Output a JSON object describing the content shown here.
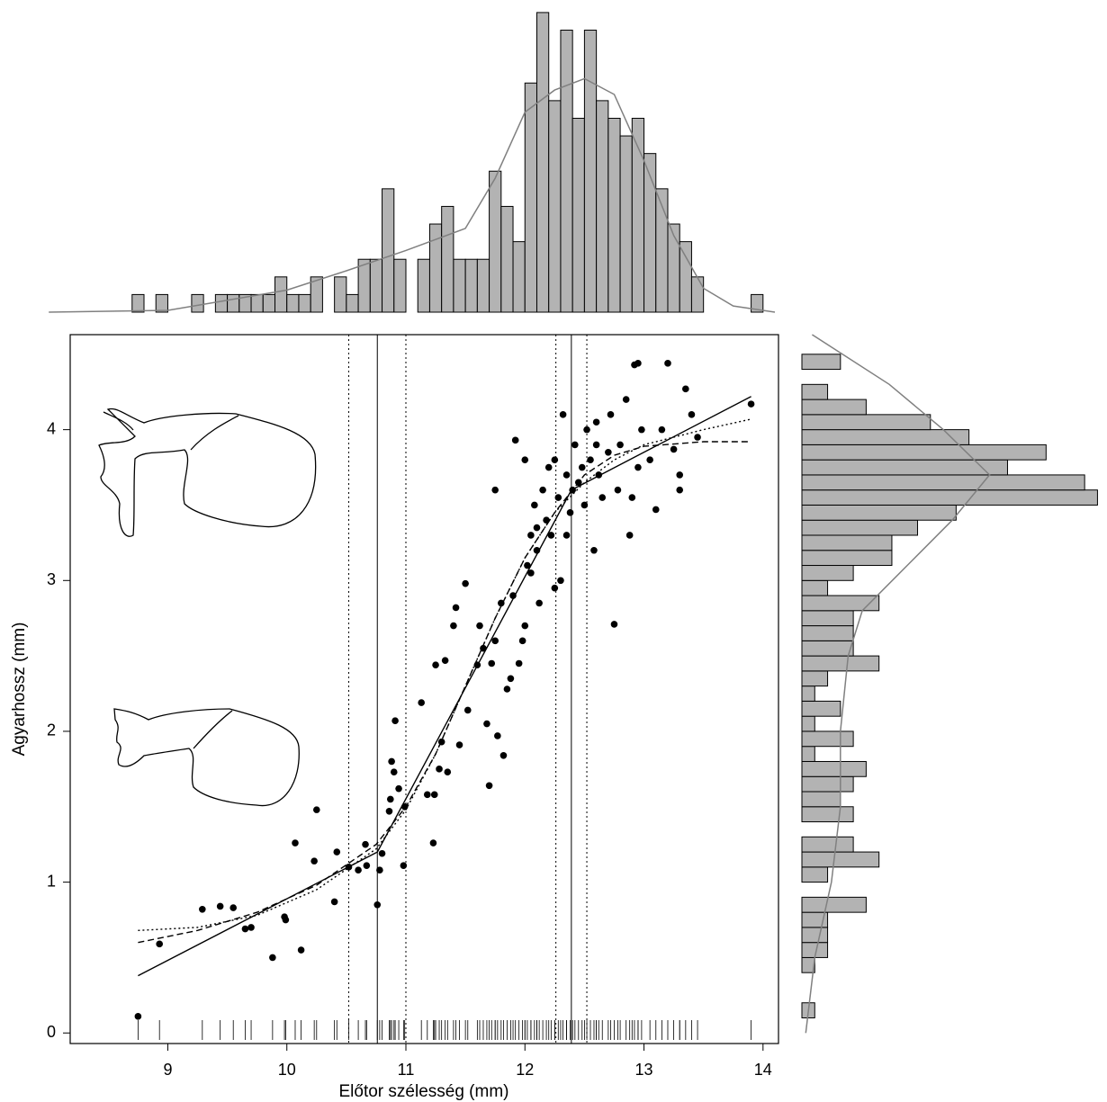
{
  "chart_data": [
    {
      "type": "histogram",
      "orientation": "vertical",
      "color": "#b3b3b3",
      "bins": [
        8.7,
        8.8,
        8.9,
        9.0,
        9.1,
        9.2,
        9.3,
        9.4,
        9.5,
        9.6,
        9.7,
        9.8,
        9.9,
        10.0,
        10.1,
        10.2,
        10.3,
        10.4,
        10.5,
        10.6,
        10.7,
        10.8,
        10.9,
        11.0,
        11.1,
        11.2,
        11.3,
        11.4,
        11.5,
        11.6,
        11.7,
        11.8,
        11.9,
        12.0,
        12.1,
        12.2,
        12.3,
        12.4,
        12.5,
        12.6,
        12.7,
        12.8,
        12.9,
        13.0,
        13.1,
        13.2,
        13.3,
        13.4,
        13.5,
        13.6,
        13.7,
        13.8,
        13.9,
        14.0
      ],
      "counts": [
        1,
        0,
        1,
        0,
        0,
        1,
        0,
        1,
        1,
        1,
        1,
        1,
        2,
        1,
        1,
        2,
        0,
        2,
        1,
        3,
        3,
        7,
        3,
        0,
        3,
        5,
        6,
        3,
        3,
        3,
        8,
        6,
        4,
        13,
        17,
        12,
        16,
        11,
        16,
        12,
        11,
        10,
        11,
        9,
        7,
        5,
        4,
        2,
        0,
        0,
        0,
        0,
        1
      ],
      "density": {
        "color": "#808080",
        "x": [
          8.0,
          9.0,
          10.0,
          10.5,
          11.0,
          11.5,
          11.75,
          12.0,
          12.25,
          12.5,
          12.75,
          13.0,
          13.25,
          13.5,
          13.75,
          14.1
        ],
        "y": [
          0,
          0.1,
          1.25,
          2.35,
          3.5,
          4.75,
          7.6,
          11.35,
          12.6,
          13.25,
          12.35,
          8.6,
          4.35,
          1.35,
          0.35,
          0
        ]
      },
      "xlim": [
        8.18,
        14.13
      ],
      "ylim": [
        0,
        17.2
      ]
    },
    {
      "type": "scatter",
      "xlabel": "Előtor szélesség (mm)",
      "ylabel": "Agyarhossz (mm)",
      "color": "#000000",
      "x": [
        8.75,
        8.93,
        9.29,
        9.44,
        9.55,
        9.65,
        9.7,
        9.88,
        9.98,
        9.99,
        10.07,
        10.12,
        10.23,
        10.25,
        10.4,
        10.42,
        10.52,
        10.6,
        10.66,
        10.67,
        10.76,
        10.78,
        10.8,
        10.86,
        10.87,
        10.88,
        10.9,
        10.91,
        10.94,
        10.98,
        10.99,
        11.13,
        11.18,
        11.23,
        11.24,
        11.25,
        11.28,
        11.3,
        11.33,
        11.35,
        11.4,
        11.42,
        11.45,
        11.5,
        11.52,
        11.6,
        11.62,
        11.65,
        11.68,
        11.7,
        11.72,
        11.75,
        11.77,
        11.8,
        11.82,
        11.85,
        11.88,
        11.9,
        11.95,
        11.98,
        12.0,
        12.02,
        12.05,
        12.08,
        12.1,
        12.12,
        12.15,
        12.18,
        12.2,
        12.22,
        12.25,
        12.28,
        12.3,
        12.32,
        12.35,
        12.38,
        12.4,
        12.42,
        12.45,
        12.48,
        12.5,
        12.52,
        12.55,
        12.58,
        12.6,
        12.62,
        12.65,
        12.7,
        12.72,
        12.75,
        12.78,
        12.8,
        12.85,
        12.88,
        12.9,
        12.92,
        12.95,
        12.98,
        13.05,
        13.1,
        13.15,
        13.2,
        13.25,
        13.3,
        13.35,
        13.4,
        13.45,
        13.9,
        11.75,
        12.0,
        11.92,
        12.05,
        12.1,
        12.25,
        12.35,
        12.6,
        12.95,
        13.3
      ],
      "y": [
        0.11,
        0.59,
        0.82,
        0.84,
        0.83,
        0.69,
        0.7,
        0.5,
        0.77,
        0.75,
        1.26,
        0.55,
        1.14,
        1.48,
        0.87,
        1.2,
        1.1,
        1.08,
        1.25,
        1.11,
        0.85,
        1.08,
        1.19,
        1.47,
        1.55,
        1.8,
        1.73,
        2.07,
        1.62,
        1.11,
        1.5,
        2.19,
        1.58,
        1.26,
        1.58,
        2.44,
        1.75,
        1.93,
        2.47,
        1.73,
        2.7,
        2.82,
        1.91,
        2.98,
        2.14,
        2.44,
        2.7,
        2.55,
        2.05,
        1.64,
        2.45,
        2.6,
        1.97,
        2.85,
        1.84,
        2.28,
        2.35,
        2.9,
        2.45,
        2.6,
        2.7,
        3.1,
        3.3,
        3.5,
        3.2,
        2.85,
        3.6,
        3.4,
        3.75,
        3.3,
        3.8,
        3.55,
        3.0,
        4.1,
        3.7,
        3.45,
        3.6,
        3.9,
        3.65,
        3.75,
        3.5,
        4.0,
        3.8,
        3.2,
        3.9,
        3.7,
        3.55,
        3.85,
        4.1,
        2.71,
        3.6,
        3.9,
        4.2,
        3.3,
        3.55,
        4.43,
        4.44,
        4.0,
        3.8,
        3.47,
        4.0,
        4.44,
        3.87,
        3.6,
        4.27,
        4.1,
        3.95,
        4.17,
        3.6,
        3.8,
        3.93,
        3.05,
        3.35,
        2.95,
        3.3,
        4.05,
        3.75,
        3.7
      ],
      "lines": [
        {
          "style": "solid",
          "x": [
            8.75,
            10.76,
            12.39,
            13.9
          ],
          "y": [
            0.38,
            1.2,
            3.6,
            4.22
          ]
        },
        {
          "style": "dashed",
          "x": [
            8.75,
            9.25,
            9.75,
            10.25,
            10.75,
            11.0,
            11.25,
            11.5,
            11.75,
            12.0,
            12.25,
            12.5,
            12.75,
            13.0,
            13.5,
            13.9
          ],
          "y": [
            0.6,
            0.68,
            0.8,
            0.98,
            1.25,
            1.5,
            1.85,
            2.3,
            2.75,
            3.15,
            3.45,
            3.7,
            3.83,
            3.89,
            3.92,
            3.92
          ]
        },
        {
          "style": "dotted",
          "x": [
            8.75,
            9.25,
            9.75,
            10.25,
            10.75,
            11.0,
            11.25,
            11.5,
            11.75,
            12.0,
            12.25,
            12.5,
            12.75,
            13.0,
            13.5,
            13.9
          ],
          "y": [
            0.68,
            0.7,
            0.78,
            0.95,
            1.22,
            1.48,
            1.85,
            2.3,
            2.75,
            3.15,
            3.45,
            3.65,
            3.8,
            3.9,
            4.0,
            4.07
          ]
        }
      ],
      "vlines": [
        {
          "x": 10.76,
          "style": "solid"
        },
        {
          "x": 12.39,
          "style": "solid"
        },
        {
          "x": 10.52,
          "style": "dotted"
        },
        {
          "x": 11.0,
          "style": "dotted"
        },
        {
          "x": 12.26,
          "style": "dotted"
        },
        {
          "x": 12.52,
          "style": "dotted"
        }
      ],
      "xlim": [
        8.18,
        14.13
      ],
      "ylim": [
        -0.07,
        4.63
      ],
      "xticks": [
        9,
        10,
        11,
        12,
        13,
        14
      ],
      "yticks": [
        0,
        1,
        2,
        3,
        4
      ]
    },
    {
      "type": "histogram",
      "orientation": "horizontal",
      "color": "#b3b3b3",
      "bins": [
        0.1,
        0.2,
        0.3,
        0.4,
        0.5,
        0.6,
        0.7,
        0.8,
        0.9,
        1.0,
        1.1,
        1.2,
        1.3,
        1.4,
        1.5,
        1.6,
        1.7,
        1.8,
        1.9,
        2.0,
        2.1,
        2.2,
        2.3,
        2.4,
        2.5,
        2.6,
        2.7,
        2.8,
        2.9,
        3.0,
        3.1,
        3.2,
        3.3,
        3.4,
        3.5,
        3.6,
        3.7,
        3.8,
        3.9,
        4.0,
        4.1,
        4.2,
        4.3,
        4.4,
        4.5
      ],
      "counts": [
        1,
        0,
        0,
        1,
        2,
        2,
        2,
        5,
        0,
        2,
        6,
        4,
        0,
        4,
        3,
        4,
        5,
        1,
        4,
        1,
        3,
        1,
        2,
        6,
        4,
        4,
        4,
        6,
        2,
        4,
        7,
        7,
        9,
        12,
        23,
        22,
        16,
        19,
        13,
        10,
        5,
        2,
        0,
        3
      ],
      "density": {
        "color": "#808080",
        "y": [
          0,
          0.5,
          1.0,
          1.5,
          2.0,
          2.5,
          2.8,
          3.1,
          3.4,
          3.7,
          4.0,
          4.3,
          4.63
        ],
        "x": [
          0.3,
          1,
          2.3,
          3.0,
          3.0,
          3.6,
          4.7,
          8.2,
          11.7,
          14.6,
          11,
          6.8,
          0.8
        ]
      },
      "xlim": [
        0,
        23.6
      ],
      "ylim": [
        -0.07,
        4.63
      ]
    }
  ]
}
